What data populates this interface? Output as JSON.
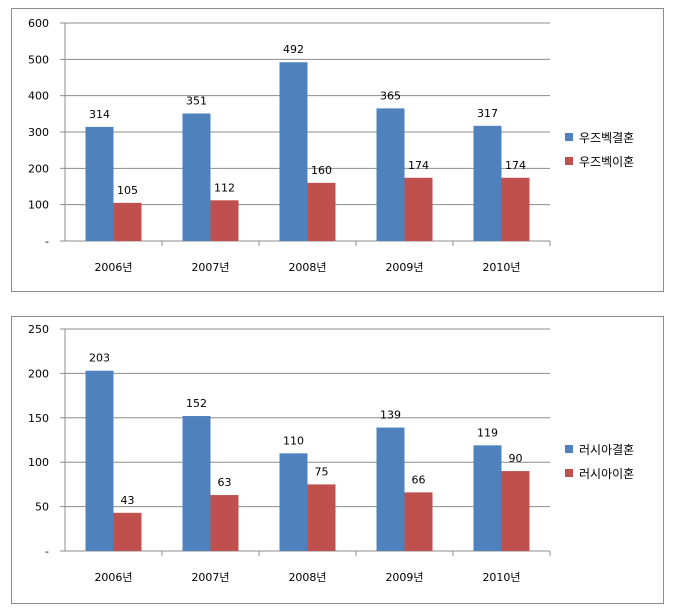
{
  "chart_data": [
    {
      "type": "bar",
      "categories": [
        "2006년",
        "2007년",
        "2008년",
        "2009년",
        "2010년"
      ],
      "series": [
        {
          "name": "우즈벡결혼",
          "values": [
            314,
            351,
            492,
            365,
            317
          ],
          "color": "#4f81bd"
        },
        {
          "name": "우즈벡이혼",
          "values": [
            105,
            112,
            160,
            174,
            174
          ],
          "color": "#c0504d"
        }
      ],
      "ylim": [
        0,
        600
      ],
      "yticks": [
        0,
        100,
        200,
        300,
        400,
        500,
        600
      ],
      "ytick_labels": [
        "-",
        "100",
        "200",
        "300",
        "400",
        "500",
        "600"
      ],
      "grid": true,
      "legend": "right"
    },
    {
      "type": "bar",
      "categories": [
        "2006년",
        "2007년",
        "2008년",
        "2009년",
        "2010년"
      ],
      "series": [
        {
          "name": "러시아결혼",
          "values": [
            203,
            152,
            110,
            139,
            119
          ],
          "color": "#4f81bd"
        },
        {
          "name": "러시아이혼",
          "values": [
            43,
            63,
            75,
            66,
            90
          ],
          "color": "#c0504d"
        }
      ],
      "ylim": [
        0,
        250
      ],
      "yticks": [
        0,
        50,
        100,
        150,
        200,
        250
      ],
      "ytick_labels": [
        "-",
        "50",
        "100",
        "150",
        "200",
        "250"
      ],
      "grid": true,
      "legend": "right"
    }
  ]
}
